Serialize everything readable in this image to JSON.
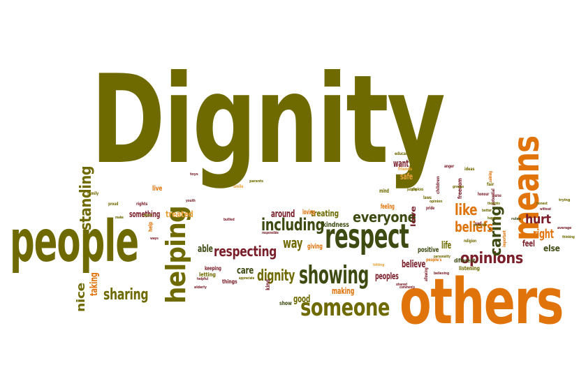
{
  "palette": {
    "olive": "#6f6a00",
    "dark_green": "#3d4a12",
    "orange": "#e0740b",
    "maroon": "#7a1e2a",
    "light_orange": "#e9a23a"
  },
  "words": [
    {
      "text": "Dignity",
      "color": "olive"
    },
    {
      "text": "others",
      "color": "orange"
    },
    {
      "text": "people",
      "color": "olive"
    },
    {
      "text": "means",
      "color": "orange"
    },
    {
      "text": "respect",
      "color": "dark_green"
    },
    {
      "text": "helping",
      "color": "olive"
    },
    {
      "text": "showing",
      "color": "dark_green"
    },
    {
      "text": "someone",
      "color": "olive"
    },
    {
      "text": "respecting",
      "color": "maroon"
    },
    {
      "text": "including",
      "color": "dark_green"
    },
    {
      "text": "opinions",
      "color": "maroon"
    },
    {
      "text": "standing",
      "color": "olive"
    },
    {
      "text": "sharing",
      "color": "olive"
    },
    {
      "text": "caring",
      "color": "dark_green"
    },
    {
      "text": "everyone",
      "color": "dark_green"
    },
    {
      "text": "dignity",
      "color": "olive"
    },
    {
      "text": "like",
      "color": "orange"
    },
    {
      "text": "beliefs",
      "color": "orange"
    },
    {
      "text": "way",
      "color": "olive"
    },
    {
      "text": "hurt",
      "color": "maroon"
    },
    {
      "text": "right",
      "color": "orange"
    },
    {
      "text": "nice",
      "color": "olive"
    },
    {
      "text": "taking",
      "color": "orange"
    },
    {
      "text": "treated",
      "color": "light_orange"
    },
    {
      "text": "care",
      "color": "dark_green"
    },
    {
      "text": "around",
      "color": "maroon"
    },
    {
      "text": "believe",
      "color": "maroon"
    },
    {
      "text": "peoples",
      "color": "maroon"
    },
    {
      "text": "good",
      "color": "olive"
    },
    {
      "text": "making",
      "color": "orange"
    },
    {
      "text": "able",
      "color": "dark_green"
    },
    {
      "text": "something",
      "color": "maroon"
    },
    {
      "text": "treating",
      "color": "olive"
    },
    {
      "text": "loving",
      "color": "orange"
    },
    {
      "text": "kindness",
      "color": "dark_green"
    },
    {
      "text": "giving",
      "color": "orange"
    },
    {
      "text": "life",
      "color": "olive"
    },
    {
      "text": "positive",
      "color": "dark_green"
    },
    {
      "text": "feel",
      "color": "maroon"
    },
    {
      "text": "else",
      "color": "dark_green"
    },
    {
      "text": "want",
      "color": "maroon"
    },
    {
      "text": "safe",
      "color": "light_orange"
    },
    {
      "text": "live",
      "color": "orange"
    },
    {
      "text": "love",
      "color": "maroon"
    },
    {
      "text": "feeling",
      "color": "orange"
    },
    {
      "text": "mind",
      "color": "olive"
    },
    {
      "text": "freedom",
      "color": "maroon"
    },
    {
      "text": "different",
      "color": "dark_green"
    },
    {
      "text": "listening",
      "color": "olive"
    },
    {
      "text": "help",
      "color": "orange"
    },
    {
      "text": "letting",
      "color": "olive"
    },
    {
      "text": "keeping",
      "color": "maroon"
    },
    {
      "text": "things",
      "color": "maroon"
    },
    {
      "text": "kind",
      "color": "maroon"
    },
    {
      "text": "education",
      "color": "olive"
    },
    {
      "text": "friends",
      "color": "light_orange"
    },
    {
      "text": "children",
      "color": "maroon"
    },
    {
      "text": "family",
      "color": "olive"
    },
    {
      "text": "proud",
      "color": "olive"
    },
    {
      "text": "rights",
      "color": "maroon"
    },
    {
      "text": "important",
      "color": "orange"
    },
    {
      "text": "potential",
      "color": "maroon"
    },
    {
      "text": "upon",
      "color": "olive"
    },
    {
      "text": "show",
      "color": "dark_green"
    },
    {
      "text": "honour",
      "color": "maroon"
    },
    {
      "text": "allowing",
      "color": "maroon"
    },
    {
      "text": "personality",
      "color": "olive"
    },
    {
      "text": "religion",
      "color": "olive"
    },
    {
      "text": "happiness",
      "color": "olive"
    },
    {
      "text": "responsible",
      "color": "maroon"
    },
    {
      "text": "laws",
      "color": "olive"
    },
    {
      "text": "choices",
      "color": "olive"
    },
    {
      "text": "elderly",
      "color": "maroon"
    },
    {
      "text": "personal",
      "color": "olive"
    },
    {
      "text": "appreciate",
      "color": "olive"
    },
    {
      "text": "anger",
      "color": "maroon"
    },
    {
      "text": "without",
      "color": "maroon"
    },
    {
      "text": "average",
      "color": "maroon"
    },
    {
      "text": "better",
      "color": "olive"
    },
    {
      "text": "ideas",
      "color": "olive"
    },
    {
      "text": "bullied",
      "color": "maroon"
    },
    {
      "text": "smile",
      "color": "light_orange"
    },
    {
      "text": "opinion",
      "color": "olive"
    },
    {
      "text": "thoughts",
      "color": "olive"
    },
    {
      "text": "thinking",
      "color": "olive"
    },
    {
      "text": "honest",
      "color": "olive"
    },
    {
      "text": "judging",
      "color": "olive"
    },
    {
      "text": "people's",
      "color": "orange"
    },
    {
      "text": "believing",
      "color": "maroon"
    },
    {
      "text": "commonly",
      "color": "maroon"
    },
    {
      "text": "pride",
      "color": "maroon"
    },
    {
      "text": "toys",
      "color": "maroon"
    },
    {
      "text": "hitting",
      "color": "light_orange"
    },
    {
      "text": "nurse",
      "color": "maroon"
    },
    {
      "text": "helpful",
      "color": "maroon"
    },
    {
      "text": "trying",
      "color": "olive"
    },
    {
      "text": "groups",
      "color": "olive"
    },
    {
      "text": "calming",
      "color": "orange"
    },
    {
      "text": "rules",
      "color": "dark_green"
    },
    {
      "text": "parents",
      "color": "olive"
    },
    {
      "text": "shared",
      "color": "maroon"
    },
    {
      "text": "youth",
      "color": "maroon"
    },
    {
      "text": "make",
      "color": "olive"
    },
    {
      "text": "sad",
      "color": "maroon"
    },
    {
      "text": "fair",
      "color": "olive"
    },
    {
      "text": "ways",
      "color": "maroon"
    }
  ]
}
